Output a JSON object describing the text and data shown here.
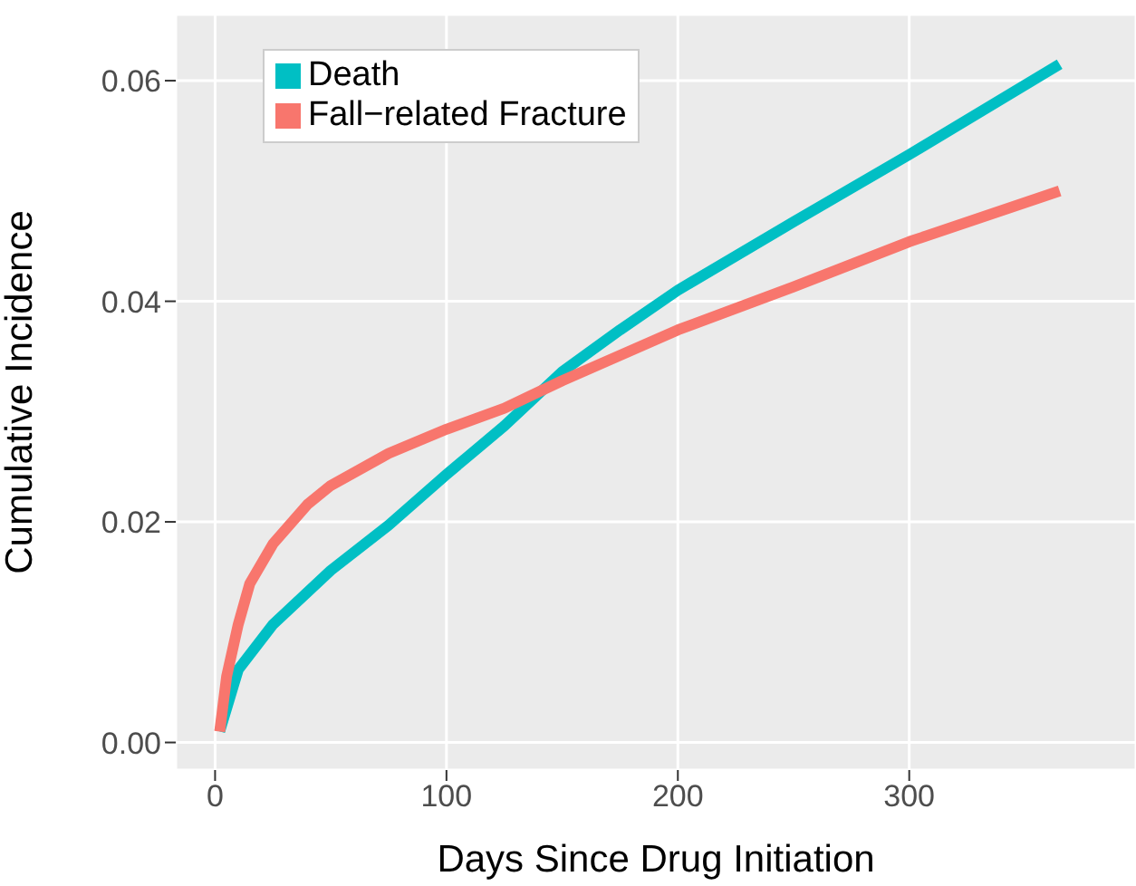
{
  "chart_data": {
    "type": "line",
    "xlabel": "Days Since Drug Initiation",
    "ylabel": "Cumulative Incidence",
    "xlim": [
      -17,
      398
    ],
    "ylim": [
      -0.0025,
      0.066
    ],
    "xticks": [
      0,
      100,
      200,
      300
    ],
    "yticks": [
      {
        "value": 0,
        "label": "0.00"
      },
      {
        "value": 0.02,
        "label": "0.02"
      },
      {
        "value": 0.04,
        "label": "0.04"
      },
      {
        "value": 0.06,
        "label": "0.06"
      }
    ],
    "grid": true,
    "legend": "top left",
    "marker": "none",
    "line_style": "solid",
    "series": [
      {
        "name": "Death",
        "color": "#00bfc4",
        "x": [
          2,
          10,
          25,
          50,
          75,
          100,
          125,
          150,
          175,
          200,
          250,
          300,
          365
        ],
        "values": [
          0.001,
          0.0066,
          0.0107,
          0.0156,
          0.0197,
          0.0243,
          0.0287,
          0.0336,
          0.0374,
          0.041,
          0.0472,
          0.0533,
          0.0615
        ]
      },
      {
        "name": "Fall−related Fracture",
        "color": "#f8766d",
        "x": [
          2,
          5,
          10,
          15,
          25,
          40,
          50,
          75,
          100,
          125,
          150,
          200,
          250,
          300,
          365
        ],
        "values": [
          0.001,
          0.006,
          0.0107,
          0.0144,
          0.018,
          0.0216,
          0.0233,
          0.0262,
          0.0284,
          0.0303,
          0.0328,
          0.0374,
          0.0413,
          0.0454,
          0.05
        ]
      }
    ]
  }
}
